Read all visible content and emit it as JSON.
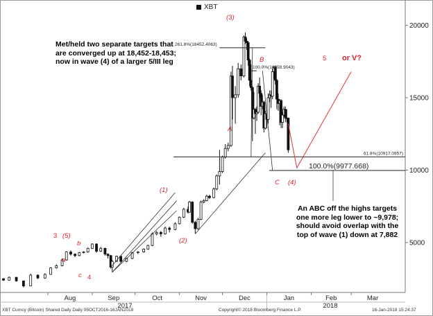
{
  "legend": {
    "label": "XBT"
  },
  "notes": {
    "targets": [
      "Met/held two separate targets that",
      "are converged up at 18,452-18,453;",
      "now in wave (4) of a larger 5/III leg"
    ],
    "abc": [
      "An ABC off the highs targets",
      "one more leg lower to ~9,978;",
      "should avoid overlap with the",
      "top of wave (1) down at 7,882"
    ]
  },
  "footer": {
    "left": "XBT Curncy (Bitcoin) Shared Daily  Daily 05OCT2016-16JAN2018",
    "center": "Copyright© 2018 Bloomberg Finance L.P.",
    "right": "16-Jan-2018 15:24:37"
  },
  "chart_data": {
    "type": "candlestick",
    "series_name": "XBT",
    "y_axis": {
      "position": "right",
      "ticks": [
        5000,
        10000,
        15000,
        20000
      ],
      "ylim": [
        2200,
        21000
      ]
    },
    "x_axis": {
      "months": [
        "Aug",
        "Sep",
        "Oct",
        "Nov",
        "Dec",
        "Jan",
        "Feb",
        "Mar"
      ],
      "years": [
        "2017",
        "2018"
      ],
      "date_range": [
        "2017-07-01",
        "2018-03-31"
      ]
    },
    "prices": [
      [
        "2017-07-01",
        2500,
        2400,
        2550,
        2350
      ],
      [
        "2017-07-05",
        2400,
        2600,
        2650,
        2380
      ],
      [
        "2017-07-10",
        2600,
        2350,
        2620,
        2300
      ],
      [
        "2017-07-15",
        2350,
        2000,
        2380,
        1900
      ],
      [
        "2017-07-20",
        2000,
        2750,
        2850,
        1980
      ],
      [
        "2017-07-25",
        2750,
        2550,
        2800,
        2480
      ],
      [
        "2017-07-30",
        2550,
        2800,
        2880,
        2500
      ],
      [
        "2017-08-03",
        2800,
        3250,
        3300,
        2780
      ],
      [
        "2017-08-07",
        3250,
        3400,
        3500,
        3200
      ],
      [
        "2017-08-11",
        3400,
        3800,
        3900,
        3350
      ],
      [
        "2017-08-14",
        3800,
        4350,
        4400,
        3750
      ],
      [
        "2017-08-17",
        4350,
        4200,
        4450,
        4100
      ],
      [
        "2017-08-20",
        4200,
        4100,
        4250,
        4000
      ],
      [
        "2017-08-23",
        4100,
        4300,
        4350,
        4050
      ],
      [
        "2017-08-26",
        4300,
        4350,
        4400,
        4250
      ],
      [
        "2017-08-29",
        4350,
        4600,
        4650,
        4300
      ],
      [
        "2017-09-01",
        4600,
        4900,
        4950,
        4550
      ],
      [
        "2017-09-04",
        4900,
        4400,
        4950,
        4300
      ],
      [
        "2017-09-07",
        4400,
        4600,
        4700,
        4350
      ],
      [
        "2017-09-10",
        4600,
        4200,
        4650,
        4100
      ],
      [
        "2017-09-12",
        4200,
        4100,
        4250,
        3900
      ],
      [
        "2017-09-14",
        4100,
        3300,
        4150,
        3200
      ],
      [
        "2017-09-15",
        3300,
        3700,
        3800,
        2950
      ],
      [
        "2017-09-18",
        3700,
        4050,
        4100,
        3650
      ],
      [
        "2017-09-21",
        4050,
        3700,
        4100,
        3600
      ],
      [
        "2017-09-25",
        3700,
        3900,
        3950,
        3650
      ],
      [
        "2017-09-29",
        3900,
        4300,
        4350,
        3850
      ],
      [
        "2017-10-03",
        4300,
        4350,
        4400,
        4200
      ],
      [
        "2017-10-07",
        4350,
        4550,
        4600,
        4300
      ],
      [
        "2017-10-10",
        4550,
        4800,
        4850,
        4500
      ],
      [
        "2017-10-13",
        4800,
        5600,
        5700,
        4750
      ],
      [
        "2017-10-16",
        5600,
        5700,
        5800,
        5500
      ],
      [
        "2017-10-19",
        5700,
        5600,
        5800,
        5400
      ],
      [
        "2017-10-22",
        5600,
        6000,
        6100,
        5550
      ],
      [
        "2017-10-25",
        6000,
        5900,
        6100,
        5700
      ],
      [
        "2017-10-29",
        5900,
        6300,
        6400,
        5850
      ],
      [
        "2017-11-01",
        6300,
        6750,
        6800,
        6250
      ],
      [
        "2017-11-04",
        6750,
        7300,
        7400,
        6700
      ],
      [
        "2017-11-07",
        7300,
        7100,
        7500,
        7000
      ],
      [
        "2017-11-08",
        7100,
        7800,
        7880,
        7050
      ],
      [
        "2017-11-10",
        7800,
        6400,
        7850,
        6300
      ],
      [
        "2017-11-12",
        6400,
        5950,
        6500,
        5600
      ],
      [
        "2017-11-14",
        5950,
        6600,
        6700,
        5900
      ],
      [
        "2017-11-16",
        6600,
        7800,
        7900,
        6550
      ],
      [
        "2017-11-18",
        7800,
        7900,
        8000,
        7700
      ],
      [
        "2017-11-20",
        7900,
        8200,
        8300,
        7850
      ],
      [
        "2017-11-22",
        8200,
        8100,
        8300,
        8000
      ],
      [
        "2017-11-25",
        8100,
        8700,
        8800,
        8050
      ],
      [
        "2017-11-27",
        8700,
        9600,
        9700,
        8600
      ],
      [
        "2017-11-29",
        9600,
        9900,
        11400,
        9000
      ],
      [
        "2017-12-01",
        9900,
        10900,
        11000,
        9800
      ],
      [
        "2017-12-03",
        10900,
        11500,
        11800,
        10800
      ],
      [
        "2017-12-05",
        11500,
        11700,
        11900,
        11300
      ],
      [
        "2017-12-07",
        11700,
        16500,
        16800,
        11600
      ],
      [
        "2017-12-08",
        16500,
        15000,
        17200,
        13500
      ],
      [
        "2017-12-10",
        15000,
        15200,
        15800,
        13200
      ],
      [
        "2017-12-12",
        15200,
        17000,
        17400,
        15000
      ],
      [
        "2017-12-14",
        17000,
        16500,
        17300,
        16200
      ],
      [
        "2017-12-16",
        16500,
        19200,
        19300,
        16400
      ],
      [
        "2017-12-17",
        19200,
        18900,
        19500,
        18700
      ],
      [
        "2017-12-18",
        18900,
        18800,
        19100,
        18300
      ],
      [
        "2017-12-19",
        18800,
        17600,
        18900,
        17200
      ],
      [
        "2017-12-20",
        17600,
        16200,
        17700,
        15800
      ],
      [
        "2017-12-21",
        16200,
        15700,
        17300,
        15500
      ],
      [
        "2017-12-22",
        15700,
        13600,
        15800,
        12000
      ],
      [
        "2017-12-23",
        13600,
        14200,
        15400,
        13500
      ],
      [
        "2017-12-24",
        14200,
        13900,
        14300,
        12500
      ],
      [
        "2017-12-25",
        13900,
        14000,
        14400,
        13400
      ],
      [
        "2017-12-26",
        14000,
        15800,
        16000,
        13900
      ],
      [
        "2017-12-27",
        15800,
        15300,
        16400,
        15000
      ],
      [
        "2017-12-28",
        15300,
        14400,
        15500,
        13800
      ],
      [
        "2017-12-29",
        14400,
        14700,
        15200,
        14200
      ],
      [
        "2017-12-30",
        14700,
        12900,
        14800,
        12600
      ],
      [
        "2017-12-31",
        12900,
        13900,
        14100,
        12800
      ],
      [
        "2018-01-01",
        13900,
        13500,
        13900,
        12900
      ],
      [
        "2018-01-02",
        13500,
        15000,
        15300,
        13200
      ],
      [
        "2018-01-03",
        15000,
        15200,
        15500,
        14700
      ],
      [
        "2018-01-04",
        15200,
        15100,
        15500,
        14300
      ],
      [
        "2018-01-05",
        15100,
        16800,
        17000,
        14900
      ],
      [
        "2018-01-06",
        16800,
        17100,
        17200,
        16300
      ],
      [
        "2018-01-07",
        17100,
        16200,
        17200,
        15900
      ],
      [
        "2018-01-08",
        16200,
        14900,
        16300,
        14200
      ],
      [
        "2018-01-09",
        14900,
        14600,
        15300,
        14100
      ],
      [
        "2018-01-10",
        14600,
        14800,
        14900,
        13100
      ],
      [
        "2018-01-11",
        14800,
        13300,
        14900,
        12900
      ],
      [
        "2018-01-12",
        13300,
        13800,
        14000,
        12900
      ],
      [
        "2018-01-13",
        13800,
        14200,
        14400,
        13700
      ],
      [
        "2018-01-14",
        14200,
        13600,
        14400,
        13300
      ],
      [
        "2018-01-15",
        13600,
        13600,
        14200,
        13300
      ],
      [
        "2018-01-16",
        13600,
        11400,
        13600,
        11200
      ]
    ],
    "annotations": {
      "fib_lines": [
        {
          "label": "261.8%(18452.4063)",
          "value": 18452.4
        },
        {
          "label": "100.0%(16858.9043)",
          "value": 16858.9
        },
        {
          "label": "61.8%(10917.0957)",
          "value": 10917.1
        },
        {
          "label": "100.0%(9977.668)",
          "value": 9977.7
        }
      ],
      "wave_labels": [
        "3",
        "(5)",
        "a",
        "b",
        "c",
        "4",
        "(1)",
        "(2)",
        "(3)",
        "A",
        "B",
        "C",
        "(4)",
        "5",
        "or V?"
      ]
    }
  }
}
